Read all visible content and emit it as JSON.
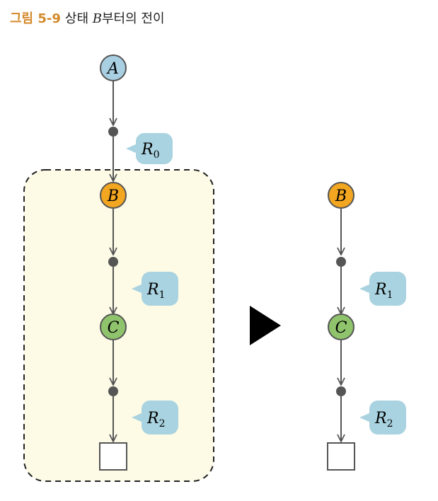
{
  "caption": {
    "figure_number": "그림 5-9",
    "text_before": "상태 ",
    "state_var": "B",
    "text_after": "부터의 전이"
  },
  "left_diagram": {
    "nodes": [
      {
        "label": "A",
        "color": "#a9cfe3"
      },
      {
        "label": "B",
        "color": "#f3a620"
      },
      {
        "label": "C",
        "color": "#8fc46d"
      }
    ],
    "regs": [
      {
        "base": "R",
        "sub": "0"
      },
      {
        "base": "R",
        "sub": "1"
      },
      {
        "base": "R",
        "sub": "2"
      }
    ],
    "highlight_color": "#fdfbe6"
  },
  "right_diagram": {
    "nodes": [
      {
        "label": "B",
        "color": "#f3a620"
      },
      {
        "label": "C",
        "color": "#8fc46d"
      }
    ],
    "regs": [
      {
        "base": "R",
        "sub": "1"
      },
      {
        "base": "R",
        "sub": "2"
      }
    ]
  },
  "colors": {
    "line": "#555555",
    "bubble": "#a9d3e0",
    "arrow_big": "#000000"
  }
}
